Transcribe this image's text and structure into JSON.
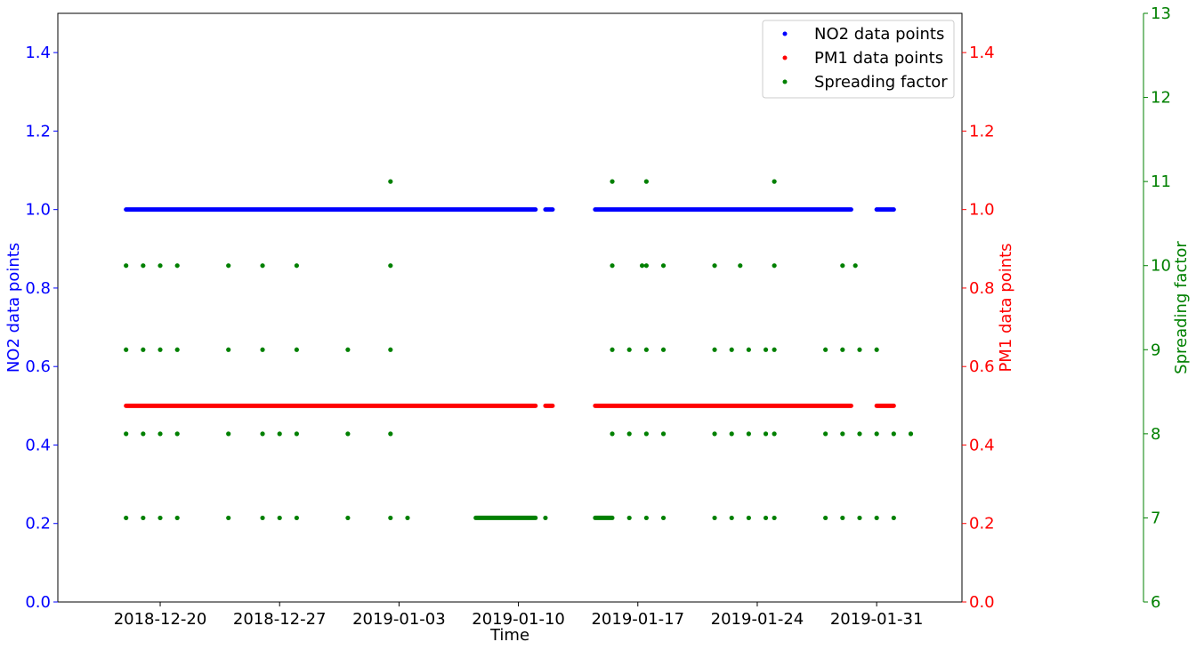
{
  "chart_data": {
    "type": "scatter",
    "xlabel": "Time",
    "x_axis": {
      "type": "date",
      "range": [
        "2018-12-14",
        "2019-02-05"
      ],
      "ticks": [
        "2018-12-20",
        "2018-12-27",
        "2019-01-03",
        "2019-01-10",
        "2019-01-17",
        "2019-01-24",
        "2019-01-31"
      ]
    },
    "axes": {
      "left": {
        "label": "NO2 data points",
        "color": "#0000ff",
        "ylim": [
          0,
          1.5
        ],
        "ticks": [
          "0.0",
          "0.2",
          "0.4",
          "0.6",
          "0.8",
          "1.0",
          "1.2",
          "1.4"
        ]
      },
      "right1": {
        "label": "PM1 data points",
        "color": "#ff0000",
        "ylim": [
          0,
          1.5
        ],
        "ticks": [
          "0.0",
          "0.2",
          "0.4",
          "0.6",
          "0.8",
          "1.0",
          "1.2",
          "1.4"
        ]
      },
      "right2": {
        "label": "Spreading factor",
        "color": "#008000",
        "ylim": [
          6,
          13
        ],
        "ticks": [
          "6",
          "7",
          "8",
          "9",
          "10",
          "11",
          "12",
          "13"
        ]
      }
    },
    "legend": {
      "placement": "top-right",
      "entries": [
        {
          "label": "NO2 data points",
          "color": "#0000ff"
        },
        {
          "label": "PM1 data points",
          "color": "#ff0000"
        },
        {
          "label": "Spreading factor",
          "color": "#008000"
        }
      ]
    },
    "series": [
      {
        "name": "NO2 data points",
        "axis": "left",
        "color": "#0000ff",
        "segments": [
          {
            "start": "2018-12-18",
            "end": "2019-01-11",
            "y": 1.0
          },
          {
            "start": "2019-01-11T14:00",
            "end": "2019-01-12",
            "y": 1.0
          },
          {
            "start": "2019-01-14T12:00",
            "end": "2019-01-29T12:00",
            "y": 1.0
          },
          {
            "start": "2019-01-31",
            "end": "2019-02-01",
            "y": 1.0
          }
        ]
      },
      {
        "name": "PM1 data points",
        "axis": "right1",
        "color": "#ff0000",
        "segments": [
          {
            "start": "2018-12-18",
            "end": "2019-01-11",
            "y": 0.5
          },
          {
            "start": "2019-01-11T14:00",
            "end": "2019-01-12",
            "y": 0.5
          },
          {
            "start": "2019-01-14T12:00",
            "end": "2019-01-29T12:00",
            "y": 0.5
          },
          {
            "start": "2019-01-31",
            "end": "2019-02-01",
            "y": 0.5
          }
        ]
      },
      {
        "name": "Spreading factor",
        "axis": "right2",
        "color": "#008000",
        "points": [
          {
            "x": "2019-01-02T12:00",
            "y": 11
          },
          {
            "x": "2019-01-15T12:00",
            "y": 11
          },
          {
            "x": "2019-01-17T12:00",
            "y": 11
          },
          {
            "x": "2019-01-25",
            "y": 11
          },
          {
            "x": "2018-12-18",
            "y": 10
          },
          {
            "x": "2018-12-19",
            "y": 10
          },
          {
            "x": "2018-12-20",
            "y": 10
          },
          {
            "x": "2018-12-21",
            "y": 10
          },
          {
            "x": "2018-12-24",
            "y": 10
          },
          {
            "x": "2018-12-26",
            "y": 10
          },
          {
            "x": "2018-12-28",
            "y": 10
          },
          {
            "x": "2019-01-02T12:00",
            "y": 10
          },
          {
            "x": "2019-01-15T12:00",
            "y": 10
          },
          {
            "x": "2019-01-17T06:00",
            "y": 10
          },
          {
            "x": "2019-01-17T12:00",
            "y": 10
          },
          {
            "x": "2019-01-18T12:00",
            "y": 10
          },
          {
            "x": "2019-01-21T12:00",
            "y": 10
          },
          {
            "x": "2019-01-23",
            "y": 10
          },
          {
            "x": "2019-01-25",
            "y": 10
          },
          {
            "x": "2019-01-29",
            "y": 10
          },
          {
            "x": "2019-01-29T18:00",
            "y": 10
          },
          {
            "x": "2018-12-18",
            "y": 9
          },
          {
            "x": "2018-12-19",
            "y": 9
          },
          {
            "x": "2018-12-20",
            "y": 9
          },
          {
            "x": "2018-12-21",
            "y": 9
          },
          {
            "x": "2018-12-24",
            "y": 9
          },
          {
            "x": "2018-12-26",
            "y": 9
          },
          {
            "x": "2018-12-28",
            "y": 9
          },
          {
            "x": "2018-12-31",
            "y": 9
          },
          {
            "x": "2019-01-02T12:00",
            "y": 9
          },
          {
            "x": "2019-01-15T12:00",
            "y": 9
          },
          {
            "x": "2019-01-16T12:00",
            "y": 9
          },
          {
            "x": "2019-01-17T12:00",
            "y": 9
          },
          {
            "x": "2019-01-18T12:00",
            "y": 9
          },
          {
            "x": "2019-01-21T12:00",
            "y": 9
          },
          {
            "x": "2019-01-22T12:00",
            "y": 9
          },
          {
            "x": "2019-01-23T12:00",
            "y": 9
          },
          {
            "x": "2019-01-24T12:00",
            "y": 9
          },
          {
            "x": "2019-01-25",
            "y": 9
          },
          {
            "x": "2019-01-28",
            "y": 9
          },
          {
            "x": "2019-01-29",
            "y": 9
          },
          {
            "x": "2019-01-30",
            "y": 9
          },
          {
            "x": "2019-01-31",
            "y": 9
          },
          {
            "x": "2018-12-18",
            "y": 8
          },
          {
            "x": "2018-12-19",
            "y": 8
          },
          {
            "x": "2018-12-20",
            "y": 8
          },
          {
            "x": "2018-12-21",
            "y": 8
          },
          {
            "x": "2018-12-24",
            "y": 8
          },
          {
            "x": "2018-12-26",
            "y": 8
          },
          {
            "x": "2018-12-27",
            "y": 8
          },
          {
            "x": "2018-12-28",
            "y": 8
          },
          {
            "x": "2018-12-31",
            "y": 8
          },
          {
            "x": "2019-01-02T12:00",
            "y": 8
          },
          {
            "x": "2019-01-15T12:00",
            "y": 8
          },
          {
            "x": "2019-01-16T12:00",
            "y": 8
          },
          {
            "x": "2019-01-17T12:00",
            "y": 8
          },
          {
            "x": "2019-01-18T12:00",
            "y": 8
          },
          {
            "x": "2019-01-21T12:00",
            "y": 8
          },
          {
            "x": "2019-01-22T12:00",
            "y": 8
          },
          {
            "x": "2019-01-23T12:00",
            "y": 8
          },
          {
            "x": "2019-01-24T12:00",
            "y": 8
          },
          {
            "x": "2019-01-25",
            "y": 8
          },
          {
            "x": "2019-01-28",
            "y": 8
          },
          {
            "x": "2019-01-29",
            "y": 8
          },
          {
            "x": "2019-01-30",
            "y": 8
          },
          {
            "x": "2019-01-31",
            "y": 8
          },
          {
            "x": "2019-02-01",
            "y": 8
          },
          {
            "x": "2019-02-02",
            "y": 8
          },
          {
            "x": "2018-12-18",
            "y": 7
          },
          {
            "x": "2018-12-19",
            "y": 7
          },
          {
            "x": "2018-12-20",
            "y": 7
          },
          {
            "x": "2018-12-21",
            "y": 7
          },
          {
            "x": "2018-12-24",
            "y": 7
          },
          {
            "x": "2018-12-26",
            "y": 7
          },
          {
            "x": "2018-12-27",
            "y": 7
          },
          {
            "x": "2018-12-28",
            "y": 7
          },
          {
            "x": "2018-12-31",
            "y": 7
          },
          {
            "x": "2019-01-02T12:00",
            "y": 7
          },
          {
            "x": "2019-01-03T12:00",
            "y": 7
          },
          {
            "x": "2019-01-11T14:00",
            "y": 7
          },
          {
            "x": "2019-01-16T12:00",
            "y": 7
          },
          {
            "x": "2019-01-17T12:00",
            "y": 7
          },
          {
            "x": "2019-01-18T12:00",
            "y": 7
          },
          {
            "x": "2019-01-21T12:00",
            "y": 7
          },
          {
            "x": "2019-01-22T12:00",
            "y": 7
          },
          {
            "x": "2019-01-23T12:00",
            "y": 7
          },
          {
            "x": "2019-01-24T12:00",
            "y": 7
          },
          {
            "x": "2019-01-25",
            "y": 7
          },
          {
            "x": "2019-01-28",
            "y": 7
          },
          {
            "x": "2019-01-29",
            "y": 7
          },
          {
            "x": "2019-01-30",
            "y": 7
          },
          {
            "x": "2019-01-31",
            "y": 7
          },
          {
            "x": "2019-02-01",
            "y": 7
          }
        ],
        "segments": [
          {
            "start": "2019-01-07T12:00",
            "end": "2019-01-11",
            "y": 7
          },
          {
            "start": "2019-01-14T12:00",
            "end": "2019-01-15T12:00",
            "y": 7
          }
        ]
      }
    ]
  }
}
